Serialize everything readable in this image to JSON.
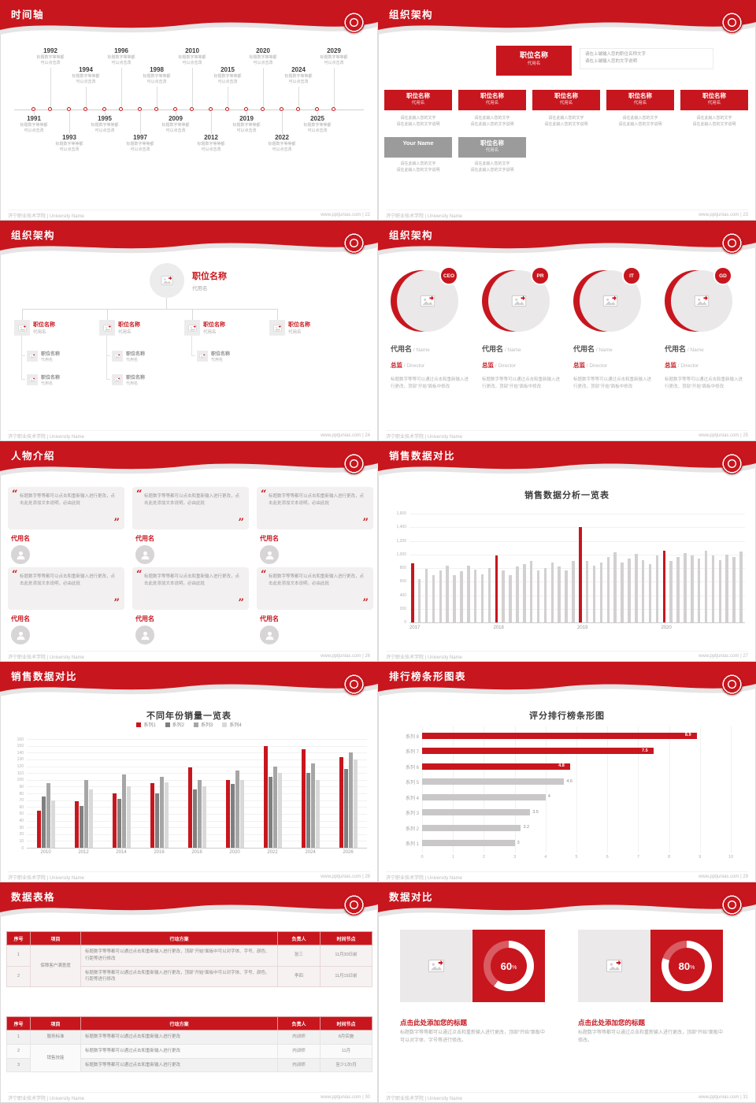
{
  "footer": {
    "left": "济宁职业技术学院 | University Name"
  },
  "slides": {
    "s22": {
      "title": "时间轴",
      "page": "22",
      "footer_right": "www.pptjunias.com | 22",
      "timeline": {
        "note": "标题数字等等都\n可以点击改",
        "top": [
          "1992",
          "1994",
          "1996",
          "1998",
          "2010",
          "2015",
          "2020",
          "2024",
          "2029"
        ],
        "bottom": [
          "1991",
          "1993",
          "1995",
          "1997",
          "2009",
          "2012",
          "2019",
          "2022",
          "2025"
        ]
      }
    },
    "s23": {
      "title": "组织架构",
      "page": "23",
      "footer_right": "www.pptjunias.com | 23",
      "root": {
        "pos": "职位名称",
        "name": "代用名",
        "note": "请在上端输入您的职位名称文字\n请在上端输入您的文字说明"
      },
      "boxes": [
        {
          "pos": "职位名称",
          "name": "代用名",
          "note": "请在此输入您的文字\n请在此输入您的文字说明"
        },
        {
          "pos": "职位名称",
          "name": "代用名",
          "note": "请在此输入您的文字\n请在此输入您的文字说明"
        },
        {
          "pos": "职位名称",
          "name": "代用名",
          "note": "请在此输入您的文字\n请在此输入您的文字说明"
        },
        {
          "pos": "职位名称",
          "name": "代用名",
          "note": "请在此输入您的文字\n请在此输入您的文字说明"
        },
        {
          "pos": "职位名称",
          "name": "代用名",
          "note": "请在此输入您的文字\n请在此输入您的文字说明"
        }
      ],
      "gray": [
        {
          "pos": "Your Name",
          "name": "",
          "note": "请在此输入您的文字\n请在此输入您的文字说明"
        },
        {
          "pos": "职位名称",
          "name": "代用名",
          "note": "请在此输入您的文字\n请在此输入您的文字说明"
        }
      ]
    },
    "s24": {
      "title": "组织架构",
      "page": "24",
      "footer_right": "www.pptjunias.com | 24",
      "root": {
        "pos": "职位名称",
        "name": "代用名"
      },
      "nodes": [
        {
          "pos": "职位名称",
          "name": "代用名",
          "children": [
            {
              "pos": "职位名称",
              "name": "代用名"
            },
            {
              "pos": "职位名称",
              "name": "代用名"
            }
          ]
        },
        {
          "pos": "职位名称",
          "name": "代用名",
          "children": [
            {
              "pos": "职位名称",
              "name": "代用名"
            },
            {
              "pos": "职位名称",
              "name": "代用名"
            }
          ]
        },
        {
          "pos": "职位名称",
          "name": "代用名",
          "children": [
            {
              "pos": "职位名称",
              "name": "代用名"
            }
          ]
        },
        {
          "pos": "职位名称",
          "name": "代用名",
          "children": []
        }
      ]
    },
    "s25": {
      "title": "组织架构",
      "page": "25",
      "footer_right": "www.pptjunias.com | 25",
      "members": [
        {
          "badge": "CEO",
          "name": "代用名",
          "name_en": "Name",
          "role": "总监",
          "role_en": "Director",
          "desc": "标题数字等等可以通过点击和重新输入进行更改，顶部“开始”面板中修改"
        },
        {
          "badge": "PR",
          "name": "代用名",
          "name_en": "Name",
          "role": "总监",
          "role_en": "Director",
          "desc": "标题数字等等可以通过点击和重新输入进行更改，顶部“开始”面板中修改"
        },
        {
          "badge": "IT",
          "name": "代用名",
          "name_en": "Name",
          "role": "总监",
          "role_en": "Director",
          "desc": "标题数字等等可以通过点击和重新输入进行更改，顶部“开始”面板中修改"
        },
        {
          "badge": "GD",
          "name": "代用名",
          "name_en": "Name",
          "role": "总监",
          "role_en": "Director",
          "desc": "标题数字等等可以通过点击和重新输入进行更改，顶部“开始”面板中修改"
        }
      ]
    },
    "s26": {
      "title": "人物介绍",
      "page": "26",
      "footer_right": "www.pptjunias.com | 26",
      "cards": [
        {
          "text": "标题数字等等都可以点击和重新输入进行更改，点击此处添加文本说明，必由此批",
          "name": "代用名"
        },
        {
          "text": "标题数字等等都可以点击和重新输入进行更改，点击此处添加文本说明，必由此批",
          "name": "代用名"
        },
        {
          "text": "标题数字等等都可以点击和重新输入进行更改，点击此处添加文本说明，必由此批",
          "name": "代用名"
        },
        {
          "text": "标题数字等等都可以点击和重新输入进行更改，点击此处添加文本说明，必由此批",
          "name": "代用名"
        },
        {
          "text": "标题数字等等都可以点击和重新输入进行更改，点击此处添加文本说明，必由此批",
          "name": "代用名"
        },
        {
          "text": "标题数字等等都可以点击和重新输入进行更改，点击此处添加文本说明，必由此批",
          "name": "代用名"
        }
      ]
    },
    "s27": {
      "title": "销售数据对比",
      "page": "27",
      "footer_right": "www.pptjunias.com | 27",
      "chart_data": {
        "type": "bar",
        "title": "销售数据分析一览表",
        "ylim": [
          0,
          1600
        ],
        "y_ticks": [
          0,
          200,
          400,
          600,
          800,
          1000,
          1200,
          1400,
          1600
        ],
        "x_ticks": [
          "2017",
          "2018",
          "2019",
          "2020"
        ],
        "x_tick_indices": [
          0,
          12,
          24,
          36
        ],
        "red_indices": [
          0,
          12,
          24,
          36
        ],
        "bar_color": "#d2d0d0",
        "accent_color": "#c8161e",
        "values": [
          870,
          640,
          790,
          700,
          760,
          830,
          690,
          750,
          840,
          780,
          710,
          800,
          980,
          760,
          700,
          820,
          860,
          900,
          760,
          800,
          880,
          820,
          760,
          900,
          1400,
          900,
          840,
          880,
          960,
          1030,
          880,
          940,
          1010,
          920,
          860,
          980,
          1060,
          900,
          960,
          1020,
          980,
          940,
          1060,
          980,
          920,
          1000,
          960,
          1040
        ]
      }
    },
    "s28": {
      "title": "销售数据对比",
      "page": "28",
      "footer_right": "www.pptjunias.com | 28",
      "chart_data": {
        "type": "grouped-bar",
        "title": "不同年份销量一览表",
        "categories": [
          "2010",
          "2012",
          "2014",
          "2016",
          "2018",
          "2020",
          "2022",
          "2024",
          "2026"
        ],
        "series": [
          {
            "name": "系列1",
            "color": "#c8161e",
            "values": [
              55,
              68,
              80,
              95,
              118,
              100,
              150,
              145,
              133
            ]
          },
          {
            "name": "系列2",
            "color": "#7f7f7f",
            "values": [
              75,
              62,
              72,
              80,
              86,
              94,
              104,
              110,
              116
            ]
          },
          {
            "name": "系列3",
            "color": "#a6a6a6",
            "values": [
              95,
              100,
              108,
              104,
              100,
              114,
              120,
              124,
              140
            ]
          },
          {
            "name": "系列4",
            "color": "#d9d9d9",
            "values": [
              70,
              86,
              90,
              96,
              90,
              100,
              110,
              100,
              130
            ]
          }
        ],
        "ylim": [
          0,
          160
        ],
        "ystep": 10
      }
    },
    "s29": {
      "title": "排行榜条形图表",
      "page": "29",
      "footer_right": "www.pptjunias.com | 29",
      "chart_data": {
        "type": "hbar",
        "title": "评分排行榜条形图",
        "categories": [
          "系列 8",
          "系列 7",
          "系列 6",
          "系列 5",
          "系列 4",
          "系列 3",
          "系列 2",
          "系列 1"
        ],
        "values": [
          8.9,
          7.5,
          4.8,
          4.6,
          4,
          3.5,
          3.2,
          3
        ],
        "highlight": [
          true,
          true,
          true,
          false,
          false,
          false,
          false,
          false
        ],
        "xlim": [
          0,
          10
        ],
        "bar_color": "#c9c7c7",
        "accent_color": "#c8161e"
      }
    },
    "s30": {
      "title": "数据表格",
      "page": "30",
      "footer_right": "www.pptjunias.com | 30",
      "table1": {
        "headers": [
          "序号",
          "项目",
          "行动方案",
          "负责人",
          "时间节点"
        ],
        "rows": [
          [
            "1",
            {
              "text": "保障客户满意度",
              "rowspan": 2
            },
            "标题数字等等都可以通过点击和重新输入进行更改，顶部“开始”面板中可以对字体、字号、颜色、行距等进行修改",
            "张三",
            "11月30日前"
          ],
          [
            "2",
            null,
            "标题数字等等都可以通过点击和重新输入进行更改，顶部“开始”面板中可以对字体、字号、颜色、行距等进行修改",
            "李四",
            "11月15日前"
          ]
        ]
      },
      "table2": {
        "headers": [
          "序号",
          "项目",
          "行动方案",
          "负责人",
          "时间节点"
        ],
        "rows": [
          [
            "1",
            "服务标准",
            "标题数字等等都可以通过点击和重新输入进行更改",
            "内训师",
            "8月实施"
          ],
          [
            "2",
            {
              "text": "销售技能",
              "rowspan": 2
            },
            "标题数字等等都可以通过点击和重新输入进行更改",
            "内训师",
            "11月"
          ],
          [
            "3",
            null,
            "标题数字等等都可以通过点击和重新输入进行更改",
            "内训师",
            "至少1次/月"
          ]
        ]
      }
    },
    "s31": {
      "title": "数据对比",
      "page": "31",
      "footer_right": "www.pptjunias.com | 31",
      "panels": [
        {
          "percent": 60,
          "heading": "点击此处添加您的标题",
          "desc": "标题数字等等都可以通过点击和重新输入进行更改，顶部“开始”面板中可以对字体、字号等进行修改。"
        },
        {
          "percent": 80,
          "heading": "点击此处添加您的标题",
          "desc": "标题数字等等都可以通过点击和重新输入进行更改，顶部“开始”面板中修改。"
        }
      ]
    }
  }
}
